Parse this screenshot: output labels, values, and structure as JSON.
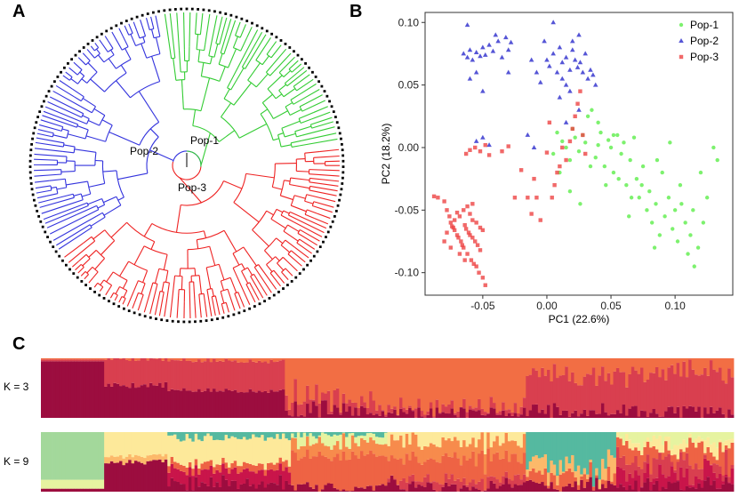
{
  "panels": {
    "a": "A",
    "b": "B",
    "c": "C"
  },
  "colors": {
    "pop1": "#33cc33",
    "pop2": "#3333dd",
    "pop3": "#ee2222",
    "pca_pop1": "#66ee55",
    "pca_pop2": "#2a2acc",
    "pca_pop3": "#ee4444",
    "k3": [
      "#9c0d3f",
      "#d93f4f",
      "#f26e44"
    ],
    "k9": [
      "#9c0d3f",
      "#c9154a",
      "#d93f4f",
      "#ee6344",
      "#f78b4c",
      "#fcb96a",
      "#fde99a",
      "#e6f3a0",
      "#a3d89b",
      "#55b9a0"
    ]
  },
  "tree_data": {
    "labels": {
      "pop1": "Pop-1",
      "pop2": "Pop-2",
      "pop3": "Pop-3"
    },
    "tips": {
      "pop1": 60,
      "pop2": 75,
      "pop3": 100
    }
  },
  "chart_data": [
    {
      "type": "scatter",
      "title": "",
      "xlabel": "PC1 (22.6%)",
      "ylabel": "PC2 (18.2%)",
      "xlim": [
        -0.095,
        0.145
      ],
      "ylim": [
        -0.118,
        0.108
      ],
      "xticks": [
        -0.05,
        0.0,
        0.05,
        0.1
      ],
      "xtick_labels": [
        "-0.05",
        "0.00",
        "0.05",
        "0.10"
      ],
      "yticks": [
        -0.1,
        -0.05,
        0.0,
        0.05,
        0.1
      ],
      "ytick_labels": [
        "-0.10",
        "-0.05",
        "0.00",
        "0.05",
        "0.10"
      ],
      "legend_position": "top-right",
      "series": [
        {
          "name": "Pop-1",
          "marker": "circle",
          "points": [
            [
              0.005,
              -0.005
            ],
            [
              0.008,
              0.012
            ],
            [
              0.012,
              0.005
            ],
            [
              0.015,
              0.0
            ],
            [
              0.018,
              -0.01
            ],
            [
              0.02,
              0.015
            ],
            [
              0.022,
              0.008
            ],
            [
              0.025,
              -0.003
            ],
            [
              0.028,
              0.01
            ],
            [
              0.03,
              0.004
            ],
            [
              0.032,
              0.025
            ],
            [
              0.035,
              0.03
            ],
            [
              0.038,
              -0.008
            ],
            [
              0.04,
              0.002
            ],
            [
              0.042,
              0.012
            ],
            [
              0.045,
              -0.015
            ],
            [
              0.048,
              0.006
            ],
            [
              0.05,
              0.0
            ],
            [
              0.052,
              -0.02
            ],
            [
              0.055,
              0.01
            ],
            [
              0.058,
              -0.005
            ],
            [
              0.06,
              0.004
            ],
            [
              0.062,
              -0.03
            ],
            [
              0.065,
              -0.01
            ],
            [
              0.068,
              0.008
            ],
            [
              0.07,
              -0.025
            ],
            [
              0.072,
              -0.04
            ],
            [
              0.075,
              -0.015
            ],
            [
              0.078,
              -0.05
            ],
            [
              0.08,
              -0.035
            ],
            [
              0.082,
              -0.06
            ],
            [
              0.085,
              -0.045
            ],
            [
              0.088,
              -0.07
            ],
            [
              0.09,
              -0.02
            ],
            [
              0.092,
              -0.055
            ],
            [
              0.095,
              -0.04
            ],
            [
              0.098,
              -0.065
            ],
            [
              0.1,
              -0.05
            ],
            [
              0.102,
              -0.075
            ],
            [
              0.105,
              -0.045
            ],
            [
              0.108,
              -0.06
            ],
            [
              0.11,
              -0.085
            ],
            [
              0.112,
              -0.07
            ],
            [
              0.115,
              -0.095
            ],
            [
              0.118,
              -0.08
            ],
            [
              0.12,
              -0.02
            ],
            [
              0.122,
              -0.06
            ],
            [
              0.125,
              -0.04
            ],
            [
              0.13,
              0.0
            ],
            [
              0.133,
              -0.01
            ],
            [
              0.01,
              -0.02
            ],
            [
              0.018,
              -0.035
            ],
            [
              0.026,
              -0.045
            ],
            [
              0.034,
              -0.015
            ],
            [
              0.046,
              -0.03
            ],
            [
              0.056,
              -0.025
            ],
            [
              0.066,
              -0.04
            ],
            [
              0.086,
              -0.01
            ],
            [
              0.096,
              0.004
            ],
            [
              0.04,
              0.02
            ],
            [
              0.052,
              0.01
            ],
            [
              0.064,
              -0.055
            ],
            [
              0.074,
              -0.03
            ],
            [
              0.084,
              -0.08
            ],
            [
              0.104,
              -0.03
            ],
            [
              0.114,
              -0.05
            ]
          ]
        },
        {
          "name": "Pop-2",
          "marker": "triangle",
          "points": [
            [
              -0.065,
              0.075
            ],
            [
              -0.062,
              0.072
            ],
            [
              -0.06,
              0.078
            ],
            [
              -0.058,
              0.07
            ],
            [
              -0.055,
              0.076
            ],
            [
              -0.052,
              0.073
            ],
            [
              -0.05,
              0.08
            ],
            [
              -0.048,
              0.074
            ],
            [
              -0.045,
              0.082
            ],
            [
              -0.042,
              0.077
            ],
            [
              -0.04,
              0.09
            ],
            [
              -0.038,
              0.085
            ],
            [
              -0.035,
              0.072
            ],
            [
              -0.032,
              0.088
            ],
            [
              -0.03,
              0.078
            ],
            [
              -0.028,
              0.084
            ],
            [
              -0.062,
              0.098
            ],
            [
              -0.06,
              0.055
            ],
            [
              -0.055,
              0.06
            ],
            [
              -0.05,
              0.045
            ],
            [
              -0.002,
              0.085
            ],
            [
              0.0,
              0.07
            ],
            [
              0.002,
              0.065
            ],
            [
              0.005,
              0.075
            ],
            [
              0.008,
              0.06
            ],
            [
              0.01,
              0.08
            ],
            [
              0.012,
              0.068
            ],
            [
              0.015,
              0.072
            ],
            [
              0.018,
              0.062
            ],
            [
              0.02,
              0.078
            ],
            [
              0.022,
              0.07
            ],
            [
              0.024,
              0.064
            ],
            [
              0.026,
              0.068
            ],
            [
              0.028,
              0.06
            ],
            [
              0.03,
              0.075
            ],
            [
              0.032,
              0.055
            ],
            [
              0.034,
              0.062
            ],
            [
              0.036,
              0.058
            ],
            [
              0.038,
              0.05
            ],
            [
              0.025,
              0.09
            ],
            [
              0.02,
              0.085
            ],
            [
              0.015,
              0.05
            ],
            [
              0.018,
              0.045
            ],
            [
              -0.012,
              0.07
            ],
            [
              -0.008,
              0.06
            ],
            [
              -0.005,
              0.052
            ],
            [
              0.005,
              0.1
            ],
            [
              -0.015,
              0.01
            ],
            [
              -0.01,
              0.0
            ],
            [
              -0.055,
              0.005
            ],
            [
              -0.05,
              0.008
            ],
            [
              -0.045,
              0.002
            ],
            [
              0.01,
              0.04
            ],
            [
              0.015,
              0.02
            ],
            [
              -0.03,
              0.06
            ],
            [
              0.025,
              0.03
            ],
            [
              0.012,
              0.055
            ]
          ]
        },
        {
          "name": "Pop-3",
          "marker": "square",
          "points": [
            [
              -0.088,
              -0.039
            ],
            [
              -0.085,
              -0.04
            ],
            [
              -0.08,
              -0.043
            ],
            [
              -0.078,
              -0.05
            ],
            [
              -0.076,
              -0.055
            ],
            [
              -0.075,
              -0.06
            ],
            [
              -0.073,
              -0.064
            ],
            [
              -0.072,
              -0.066
            ],
            [
              -0.07,
              -0.07
            ],
            [
              -0.069,
              -0.072
            ],
            [
              -0.068,
              -0.055
            ],
            [
              -0.067,
              -0.075
            ],
            [
              -0.066,
              -0.078
            ],
            [
              -0.065,
              -0.08
            ],
            [
              -0.064,
              -0.062
            ],
            [
              -0.063,
              -0.065
            ],
            [
              -0.062,
              -0.085
            ],
            [
              -0.061,
              -0.068
            ],
            [
              -0.06,
              -0.07
            ],
            [
              -0.059,
              -0.09
            ],
            [
              -0.058,
              -0.072
            ],
            [
              -0.057,
              -0.093
            ],
            [
              -0.056,
              -0.075
            ],
            [
              -0.055,
              -0.095
            ],
            [
              -0.054,
              -0.078
            ],
            [
              -0.053,
              -0.1
            ],
            [
              -0.052,
              -0.082
            ],
            [
              -0.05,
              -0.104
            ],
            [
              -0.07,
              -0.052
            ],
            [
              -0.072,
              -0.058
            ],
            [
              -0.074,
              -0.063
            ],
            [
              -0.078,
              -0.068
            ],
            [
              -0.08,
              -0.075
            ],
            [
              -0.065,
              -0.05
            ],
            [
              -0.06,
              -0.053
            ],
            [
              -0.058,
              -0.058
            ],
            [
              -0.055,
              -0.06
            ],
            [
              -0.052,
              -0.064
            ],
            [
              -0.05,
              -0.066
            ],
            [
              -0.048,
              -0.11
            ],
            [
              -0.062,
              -0.047
            ],
            [
              -0.058,
              -0.045
            ],
            [
              -0.075,
              -0.08
            ],
            [
              -0.068,
              -0.085
            ],
            [
              -0.064,
              -0.09
            ],
            [
              -0.063,
              -0.005
            ],
            [
              -0.06,
              -0.002
            ],
            [
              -0.056,
              0.0
            ],
            [
              -0.052,
              -0.003
            ],
            [
              -0.048,
              0.002
            ],
            [
              -0.045,
              -0.006
            ],
            [
              -0.035,
              -0.003
            ],
            [
              -0.03,
              0.001
            ],
            [
              -0.02,
              -0.018
            ],
            [
              -0.015,
              -0.04
            ],
            [
              -0.012,
              -0.053
            ],
            [
              -0.008,
              -0.04
            ],
            [
              -0.005,
              -0.058
            ],
            [
              0.0,
              -0.004
            ],
            [
              0.004,
              -0.04
            ],
            [
              0.006,
              -0.03
            ],
            [
              0.01,
              -0.015
            ],
            [
              0.012,
              0.0
            ],
            [
              0.015,
              -0.01
            ],
            [
              0.018,
              0.005
            ],
            [
              0.02,
              0.015
            ],
            [
              0.022,
              0.025
            ],
            [
              0.024,
              0.035
            ],
            [
              0.026,
              0.045
            ],
            [
              0.028,
              0.01
            ],
            [
              0.03,
              -0.005
            ],
            [
              0.008,
              -0.02
            ],
            [
              -0.025,
              -0.04
            ],
            [
              -0.01,
              -0.025
            ],
            [
              0.002,
              0.02
            ]
          ]
        }
      ]
    },
    {
      "type": "stacked-bar",
      "title": "K = 3",
      "rows": [
        {
          "label": "K = 3"
        },
        {
          "label": "K = 9"
        }
      ]
    }
  ]
}
